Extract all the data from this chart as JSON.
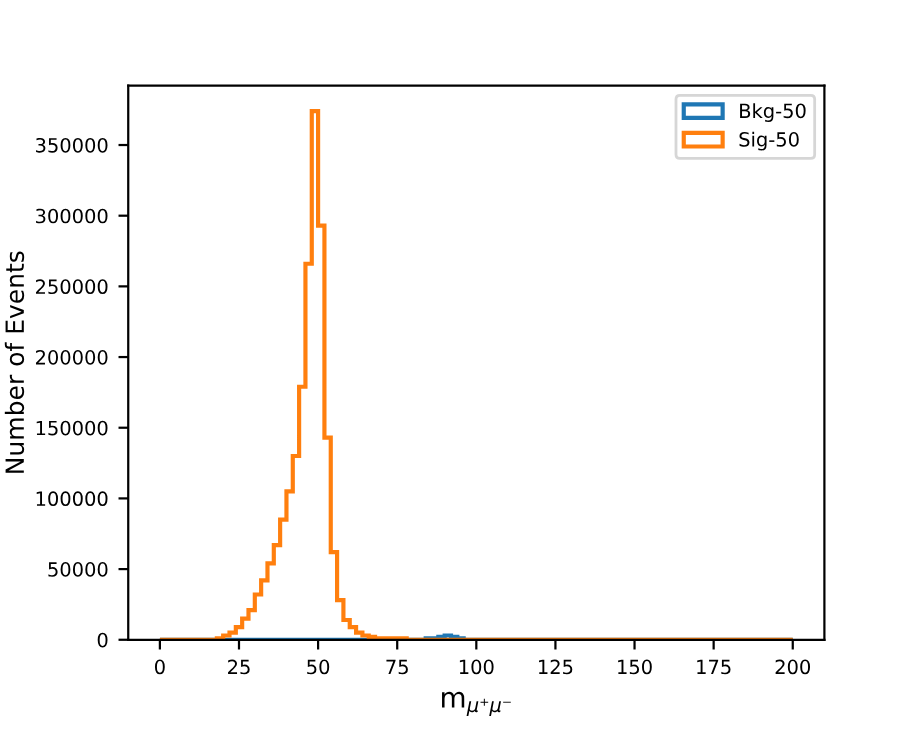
{
  "chart_data": {
    "type": "histogram",
    "xlabel": "m$_{μ⁺μ⁻}$",
    "ylabel": "Number of Events",
    "bins": [
      0,
      2,
      4,
      6,
      8,
      10,
      12,
      14,
      16,
      18,
      20,
      22,
      24,
      26,
      28,
      30,
      32,
      34,
      36,
      38,
      40,
      42,
      44,
      46,
      48,
      50,
      52,
      54,
      56,
      58,
      60,
      62,
      64,
      66,
      68,
      70,
      72,
      74,
      76,
      78,
      80,
      82,
      84,
      86,
      88,
      90,
      92,
      94,
      96,
      98,
      100,
      102,
      104,
      106,
      108,
      110,
      112,
      114,
      116,
      118,
      120,
      122,
      124,
      126,
      128,
      130,
      132,
      134,
      136,
      138,
      140,
      142,
      144,
      146,
      148,
      150,
      152,
      154,
      156,
      158,
      160,
      162,
      164,
      166,
      168,
      170,
      172,
      174,
      176,
      178,
      180,
      182,
      184,
      186,
      188,
      190,
      192,
      194,
      196,
      198,
      200
    ],
    "series": [
      {
        "name": "Bkg-50",
        "color": "#1f77b4",
        "values": [
          0,
          0,
          0,
          0,
          0,
          0,
          0,
          0,
          0,
          0,
          0,
          0,
          0,
          0,
          0,
          0,
          0,
          0,
          0,
          0,
          0,
          0,
          0,
          0,
          0,
          0,
          0,
          0,
          0,
          0,
          0,
          0,
          0,
          0,
          0,
          0,
          0,
          0,
          0,
          0,
          0,
          0,
          1000,
          1000,
          2000,
          3000,
          2000,
          1000,
          0,
          0,
          0,
          0,
          0,
          0,
          0,
          0,
          0,
          0,
          0,
          0,
          0,
          0,
          0,
          0,
          0,
          0,
          0,
          0,
          0,
          0,
          0,
          0,
          0,
          0,
          0,
          0,
          0,
          0,
          0,
          0,
          0,
          0,
          0,
          0,
          0,
          0,
          0,
          0,
          0,
          0,
          0,
          0,
          0,
          0,
          0,
          0,
          0,
          0,
          0,
          0
        ]
      },
      {
        "name": "Sig-50",
        "color": "#ff7f0e",
        "values": [
          0,
          0,
          0,
          0,
          0,
          0,
          0,
          0,
          0,
          1000,
          3000,
          5000,
          9000,
          15000,
          21000,
          32000,
          42000,
          54000,
          67000,
          85000,
          105000,
          130000,
          179000,
          266000,
          374000,
          293000,
          143000,
          62000,
          28000,
          14000,
          9000,
          5000,
          3000,
          2000,
          1000,
          1000,
          1000,
          1000,
          1000,
          0,
          0,
          0,
          0,
          0,
          0,
          0,
          0,
          0,
          0,
          0,
          0,
          0,
          0,
          0,
          0,
          0,
          0,
          0,
          0,
          0,
          0,
          0,
          0,
          0,
          0,
          0,
          0,
          0,
          0,
          0,
          0,
          0,
          0,
          0,
          0,
          0,
          0,
          0,
          0,
          0,
          0,
          0,
          0,
          0,
          0,
          0,
          0,
          0,
          0,
          0,
          0,
          0,
          0,
          0,
          0,
          0,
          0,
          0,
          0,
          0
        ]
      }
    ],
    "xlim": [
      -10,
      210
    ],
    "xticks": [
      0,
      25,
      50,
      75,
      100,
      125,
      150,
      175,
      200
    ],
    "ylim": [
      0,
      392000
    ],
    "yticks": [
      0,
      50000,
      100000,
      150000,
      200000,
      250000,
      300000,
      350000
    ],
    "grid": false,
    "legend": "top right"
  }
}
